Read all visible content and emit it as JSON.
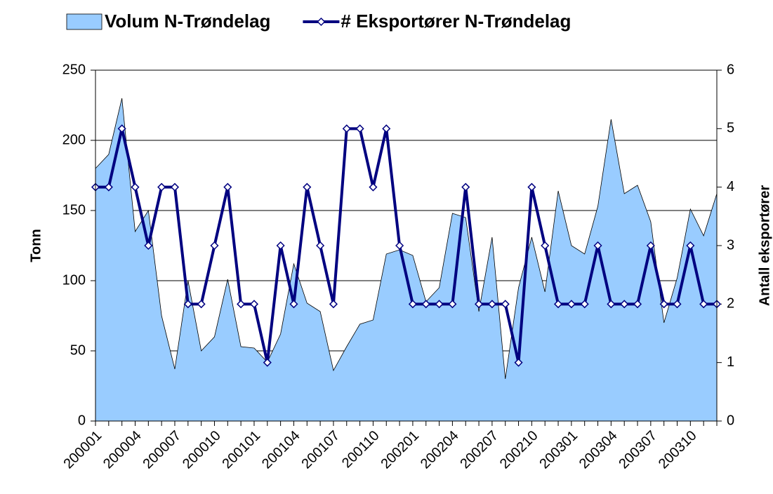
{
  "chart_data": {
    "type": "combo",
    "categories": [
      "200001",
      null,
      null,
      "200004",
      null,
      null,
      "200007",
      null,
      null,
      "200010",
      null,
      null,
      "200101",
      null,
      null,
      "200104",
      null,
      null,
      "200107",
      null,
      null,
      "200110",
      null,
      null,
      "200201",
      null,
      null,
      "200204",
      null,
      null,
      "200207",
      null,
      null,
      "200210",
      null,
      null,
      "200301",
      null,
      null,
      "200304",
      null,
      null,
      "200307",
      null,
      null,
      "200310",
      null,
      null
    ],
    "series": [
      {
        "name": "Volum N-Trøndelag",
        "type": "area",
        "axis": "y",
        "color": "#99ccff",
        "values": [
          180,
          190,
          230,
          135,
          150,
          75,
          37,
          100,
          50,
          60,
          101,
          53,
          52,
          42,
          62,
          112,
          84,
          78,
          36,
          53,
          69,
          72,
          119,
          122,
          118,
          85,
          95,
          148,
          145,
          78,
          131,
          30,
          95,
          131,
          92,
          164,
          125,
          119,
          153,
          215,
          162,
          168,
          142,
          70,
          102,
          151,
          132,
          162
        ]
      },
      {
        "name": "# Eksportører N-Trøndelag",
        "type": "line",
        "axis": "y2",
        "color": "#000080",
        "values": [
          4,
          4,
          5,
          4,
          3,
          4,
          4,
          2,
          2,
          3,
          4,
          2,
          2,
          1,
          3,
          2,
          4,
          3,
          2,
          5,
          5,
          4,
          5,
          3,
          2,
          2,
          2,
          2,
          4,
          2,
          2,
          2,
          1,
          4,
          3,
          2,
          2,
          2,
          3,
          2,
          2,
          2,
          3,
          2,
          2,
          3,
          2,
          2
        ]
      }
    ],
    "y_label": "Tonn",
    "y2_label": "Antall eksportører",
    "ylim": [
      0,
      250
    ],
    "yticks": [
      0,
      50,
      100,
      150,
      200,
      250
    ],
    "y2lim": [
      0,
      6
    ],
    "y2ticks": [
      0,
      1,
      2,
      3,
      4,
      5,
      6
    ],
    "grid": true,
    "legend": "top"
  }
}
